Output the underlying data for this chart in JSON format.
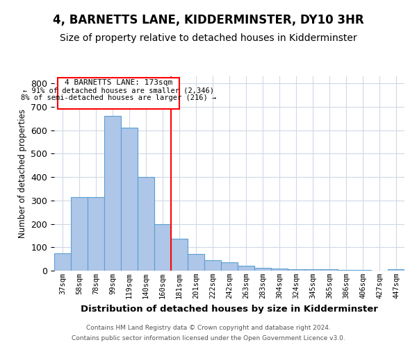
{
  "title": "4, BARNETTS LANE, KIDDERMINSTER, DY10 3HR",
  "subtitle": "Size of property relative to detached houses in Kidderminster",
  "xlabel": "Distribution of detached houses by size in Kidderminster",
  "ylabel": "Number of detached properties",
  "categories": [
    "37sqm",
    "58sqm",
    "78sqm",
    "99sqm",
    "119sqm",
    "140sqm",
    "160sqm",
    "181sqm",
    "201sqm",
    "222sqm",
    "242sqm",
    "263sqm",
    "283sqm",
    "304sqm",
    "324sqm",
    "345sqm",
    "365sqm",
    "386sqm",
    "406sqm",
    "427sqm",
    "447sqm"
  ],
  "values": [
    75,
    315,
    315,
    660,
    610,
    400,
    200,
    135,
    70,
    45,
    35,
    20,
    12,
    8,
    7,
    5,
    5,
    3,
    2,
    1,
    7
  ],
  "bar_color": "#aec6e8",
  "bar_edge_color": "#5a9fd4",
  "redline_index": 7,
  "annotation_title": "4 BARNETTS LANE: 173sqm",
  "annotation_line1": "← 91% of detached houses are smaller (2,346)",
  "annotation_line2": "8% of semi-detached houses are larger (216) →",
  "footnote1": "Contains HM Land Registry data © Crown copyright and database right 2024.",
  "footnote2": "Contains public sector information licensed under the Open Government Licence v3.0.",
  "ylim": [
    0,
    830
  ],
  "bg_color": "#ffffff",
  "grid_color": "#d0d8e8",
  "title_fontsize": 12,
  "subtitle_fontsize": 10
}
